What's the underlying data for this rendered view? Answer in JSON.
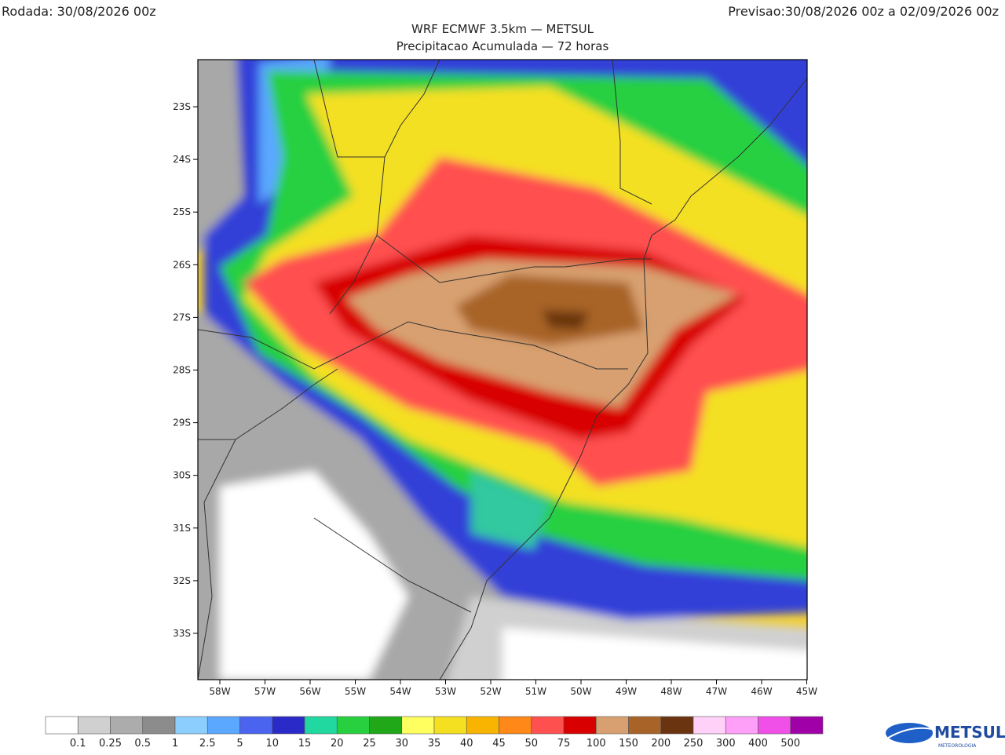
{
  "header": {
    "run": "Rodada: 30/08/2026 00z",
    "forecast": "Previsao:30/08/2026 00z a 02/09/2026 00z"
  },
  "title": "WRF ECMWF 3.5km — METSUL",
  "subtitle": "Precipitacao Acumulada — 72 horas",
  "map": {
    "lat_labels": [
      "23S",
      "24S",
      "25S",
      "26S",
      "27S",
      "28S",
      "29S",
      "30S",
      "31S",
      "32S",
      "33S"
    ],
    "lon_labels": [
      "58W",
      "57W",
      "56W",
      "55W",
      "54W",
      "53W",
      "52W",
      "51W",
      "50W",
      "49W",
      "48W",
      "47W",
      "46W",
      "45W"
    ]
  },
  "colorbar": {
    "labels": [
      0.1,
      0.25,
      0.5,
      1,
      2.5,
      5,
      10,
      15,
      20,
      25,
      30,
      35,
      40,
      45,
      50,
      75,
      100,
      150,
      200,
      250,
      300,
      400,
      500
    ],
    "colors": [
      "#ffffff",
      "#d0d0d0",
      "#acacac",
      "#8c8c8c",
      "#8ccfff",
      "#5aa8ff",
      "#4a64f0",
      "#2a2ac8",
      "#20d8a0",
      "#28d040",
      "#20a818",
      "#ffff60",
      "#f4e020",
      "#f8b400",
      "#ff8818",
      "#ff5050",
      "#d80000",
      "#d8a070",
      "#a86428",
      "#6a3410",
      "#ffd0f8",
      "#ffa0f8",
      "#f050e8",
      "#a000a8"
    ]
  },
  "logo": {
    "name": "METSUL",
    "tagline": "METEOROLOGIA"
  }
}
